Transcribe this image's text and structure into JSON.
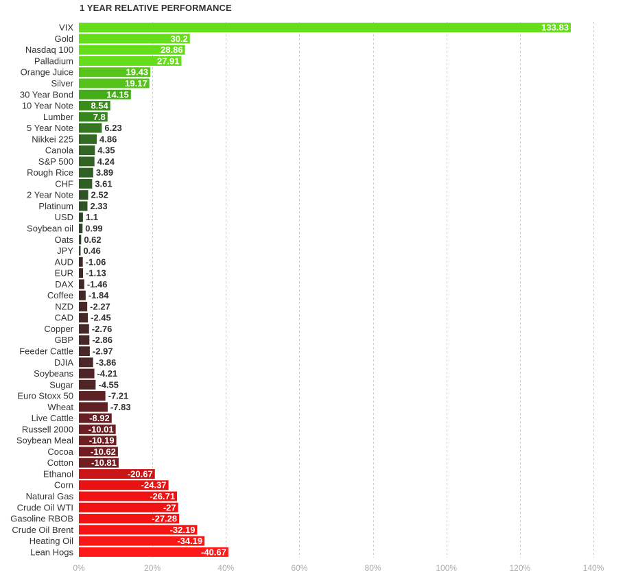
{
  "chart_data": {
    "type": "bar",
    "orientation": "horizontal",
    "title": "1 YEAR RELATIVE PERFORMANCE",
    "categories": [
      "VIX",
      "Gold",
      "Nasdaq 100",
      "Palladium",
      "Orange Juice",
      "Silver",
      "30 Year Bond",
      "10 Year Note",
      "Lumber",
      "5 Year Note",
      "Nikkei 225",
      "Canola",
      "S&P 500",
      "Rough Rice",
      "CHF",
      "2 Year Note",
      "Platinum",
      "USD",
      "Soybean oil",
      "Oats",
      "JPY",
      "AUD",
      "EUR",
      "DAX",
      "Coffee",
      "NZD",
      "CAD",
      "Copper",
      "GBP",
      "Feeder Cattle",
      "DJIA",
      "Soybeans",
      "Sugar",
      "Euro Stoxx 50",
      "Wheat",
      "Live Cattle",
      "Russell 2000",
      "Soybean Meal",
      "Cocoa",
      "Cotton",
      "Ethanol",
      "Corn",
      "Natural Gas",
      "Crude Oil WTI",
      "Gasoline RBOB",
      "Crude Oil Brent",
      "Heating Oil",
      "Lean Hogs"
    ],
    "values": [
      133.83,
      30.2,
      28.86,
      27.91,
      19.43,
      19.17,
      14.15,
      8.54,
      7.8,
      6.23,
      4.86,
      4.35,
      4.24,
      3.89,
      3.61,
      2.52,
      2.33,
      1.1,
      0.99,
      0.62,
      0.46,
      -1.06,
      -1.13,
      -1.46,
      -1.84,
      -2.27,
      -2.45,
      -2.76,
      -2.86,
      -2.97,
      -3.86,
      -4.21,
      -4.55,
      -7.21,
      -7.83,
      -8.92,
      -10.01,
      -10.19,
      -10.62,
      -10.81,
      -20.67,
      -24.37,
      -26.71,
      -27,
      -27.28,
      -32.19,
      -34.19,
      -40.67
    ],
    "value_labels": [
      "133.83",
      "30.2",
      "28.86",
      "27.91",
      "19.43",
      "19.17",
      "14.15",
      "8.54",
      "7.8",
      "6.23",
      "4.86",
      "4.35",
      "4.24",
      "3.89",
      "3.61",
      "2.52",
      "2.33",
      "1.1",
      "0.99",
      "0.62",
      "0.46",
      "-1.06",
      "-1.13",
      "-1.46",
      "-1.84",
      "-2.27",
      "-2.45",
      "-2.76",
      "-2.86",
      "-2.97",
      "-3.86",
      "-4.21",
      "-4.55",
      "-7.21",
      "-7.83",
      "-8.92",
      "-10.01",
      "-10.19",
      "-10.62",
      "-10.81",
      "-20.67",
      "-24.37",
      "-26.71",
      "-27",
      "-27.28",
      "-32.19",
      "-34.19",
      "-40.67"
    ],
    "xlim": [
      0,
      140
    ],
    "x_ticks": [
      0,
      20,
      40,
      60,
      80,
      100,
      120,
      140
    ],
    "x_tick_labels": [
      "0%",
      "20%",
      "40%",
      "60%",
      "80%",
      "100%",
      "120%",
      "140%"
    ],
    "bar_magnitude_rule": "absolute value",
    "grid": "vertical dashed",
    "legend": "none",
    "colors": {
      "positive_high": "#66dd1b",
      "positive_mid": "#3a9a1a",
      "positive_low": "#2a3d2a",
      "negative_low": "#3a2a2a",
      "negative_mid": "#6b1f22",
      "negative_high": "#ee1111",
      "tick_text": "#aaaaaa",
      "label_text": "#333333",
      "grid": "#cccccc"
    }
  }
}
